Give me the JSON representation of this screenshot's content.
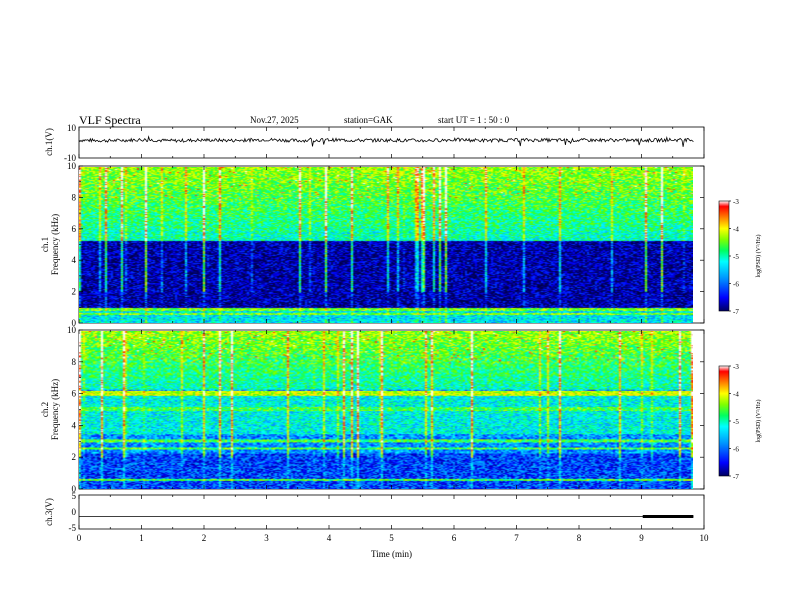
{
  "header": {
    "title": "VLF  Spectra",
    "date": "Nov.27, 2025",
    "station": "station=GAK",
    "start_ut": "start  UT  =   1  : 50 : 0"
  },
  "colors": {
    "spectrogram_scale": [
      "#000080",
      "#0000ff",
      "#0096ff",
      "#00ffff",
      "#00ff80",
      "#80ff00",
      "#ffff00",
      "#ff8000",
      "#ff0000",
      "#ffffff"
    ]
  },
  "chart_data": [
    {
      "type": "line",
      "name": "ch1-waveform",
      "ylabel": "ch.1(V)",
      "ylim": [
        -10,
        10
      ],
      "yticks": [
        10,
        -10
      ],
      "x": [
        0,
        0.5,
        1,
        1.5,
        2,
        2.5,
        3,
        3.5,
        4,
        4.5,
        5,
        5.5,
        6,
        6.5,
        7,
        7.5,
        8,
        8.5,
        9,
        9.5,
        9.83
      ],
      "values": [
        1.5,
        1.2,
        1.8,
        1.1,
        1.6,
        1.3,
        1.9,
        1.2,
        1.7,
        1.4,
        1.5,
        1.2,
        1.8,
        1.3,
        1.6,
        1.5,
        1.4,
        1.6,
        1.3,
        1.7,
        1.5
      ]
    },
    {
      "type": "heatmap",
      "name": "ch1-spectrogram",
      "ylabel": "ch.1\nFrequency  (kHz)",
      "ylim": [
        0,
        10
      ],
      "yticks": [
        "0",
        "2",
        "4",
        "6",
        "8",
        "10"
      ],
      "xlim": [
        0,
        9.83
      ],
      "colorbar": {
        "label": "log(PSD) (V²/Hz)",
        "range": [
          -7,
          -3
        ],
        "ticks": [
          "-3",
          "-4",
          "-5",
          "-6",
          "-7"
        ]
      }
    },
    {
      "type": "heatmap",
      "name": "ch2-spectrogram",
      "ylabel": "ch.2\nFrequency  (kHz)",
      "ylim": [
        0,
        10
      ],
      "yticks": [
        "0",
        "2",
        "4",
        "6",
        "8",
        "10"
      ],
      "xlim": [
        0,
        9.83
      ],
      "colorbar": {
        "label": "log(PSD) (V²/Hz)",
        "range": [
          -7,
          -3
        ],
        "ticks": [
          "-3",
          "-4",
          "-5",
          "-6",
          "-7"
        ]
      }
    },
    {
      "type": "line",
      "name": "ch3-waveform",
      "ylabel": "ch.3(V)",
      "ylim": [
        -5,
        5
      ],
      "yticks": [
        "5",
        "0",
        "-5"
      ],
      "x": [
        0,
        9.0,
        9.05,
        9.83
      ],
      "values": [
        -1.5,
        -1.5,
        -1.5,
        -1.5
      ],
      "marker_segment": [
        9.02,
        9.83
      ]
    }
  ],
  "xaxis": {
    "label": "Time  (min)",
    "ticks": [
      "0",
      "1",
      "2",
      "3",
      "4",
      "5",
      "6",
      "7",
      "8",
      "9",
      "10"
    ],
    "xlim": [
      0,
      10
    ]
  }
}
